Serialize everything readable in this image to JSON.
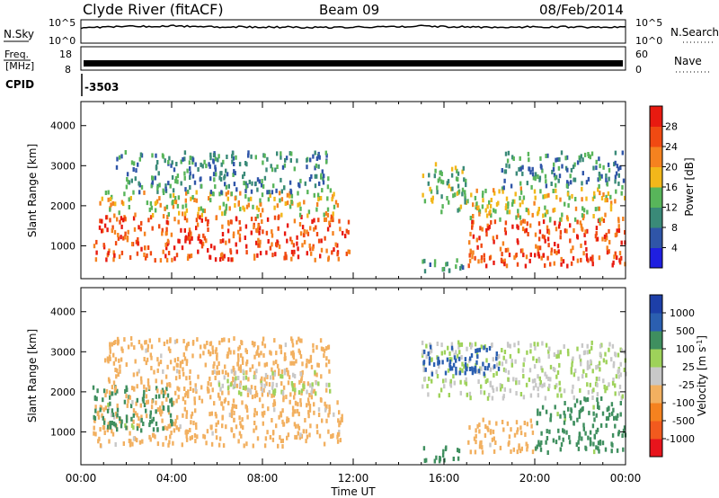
{
  "header": {
    "station": "Clyde River (fitACF)",
    "beam": "Beam 09",
    "date": "08/Feb/2014"
  },
  "noise_panel": {
    "left_label": "N.Sky",
    "right_label": "N.Search",
    "left_ticks": [
      "10^5",
      "10^0"
    ],
    "right_ticks": [
      "10^5",
      "10^0"
    ]
  },
  "freq_panel": {
    "left_label_line1": "Freq.",
    "left_label_line2": "[MHz]",
    "right_label": "Nave",
    "left_ticks": [
      "18",
      "8"
    ],
    "right_ticks": [
      "60",
      "0"
    ]
  },
  "cpid_panel": {
    "label": "CPID",
    "value": "-3503"
  },
  "axes": {
    "ylabel": "Slant Range [km]",
    "xlabel": "Time UT",
    "x_ticks": [
      "00:00",
      "04:00",
      "08:00",
      "12:00",
      "16:00",
      "20:00",
      "00:00"
    ],
    "y_ticks": [
      "1000",
      "2000",
      "3000",
      "4000"
    ]
  },
  "colors": {
    "power_scale": [
      "#1f1fe0",
      "#2f55a8",
      "#3a8a78",
      "#58b55a",
      "#f2b71a",
      "#f5821f",
      "#f04a12",
      "#e81a10"
    ],
    "velocity_scale": [
      "#e8141c",
      "#f25a1e",
      "#f5821f",
      "#f2b060",
      "#c8c8c8",
      "#9ed25a",
      "#3f8f5f",
      "#2b5fb0",
      "#1d3fa8"
    ]
  },
  "chart_data": [
    {
      "type": "line",
      "title": "Clyde River (fitACF)",
      "xlabel": "",
      "ylabel": "N.Sky",
      "x_range_hours": [
        0,
        24
      ],
      "ylim": [
        1,
        100000
      ],
      "yscale": "log",
      "series": [
        {
          "name": "N.Sky",
          "x": [
            0,
            1,
            2,
            3,
            4,
            5,
            6,
            8,
            10,
            12,
            14,
            15,
            16,
            18,
            20,
            22,
            24
          ],
          "values": [
            2000,
            3000,
            3500,
            4000,
            5000,
            3500,
            3000,
            2800,
            2500,
            2600,
            3200,
            5000,
            3500,
            2500,
            3000,
            2800,
            2600
          ]
        }
      ]
    },
    {
      "type": "line",
      "title": "",
      "xlabel": "",
      "ylabel": "Freq. [MHz]",
      "x_range_hours": [
        0,
        24
      ],
      "ylim": [
        8,
        18
      ],
      "series": [
        {
          "name": "Freq.",
          "x": [
            0,
            24
          ],
          "values": [
            12,
            12
          ]
        }
      ]
    },
    {
      "type": "heatmap",
      "title": "",
      "xlabel": "",
      "ylabel": "Slant Range [km]",
      "colorbar_label": "Power [dB]",
      "colorbar_ticks": [
        4,
        8,
        12,
        16,
        20,
        24,
        28
      ],
      "value_range": [
        0,
        32
      ],
      "x_range_hours": [
        0,
        24
      ],
      "ylim": [
        180,
        4600
      ],
      "regions": [
        {
          "t0": 0.5,
          "t1": 11.8,
          "r0": 600,
          "r1": 1700,
          "value": 28
        },
        {
          "t0": 0.8,
          "t1": 11.5,
          "r0": 1700,
          "r1": 2300,
          "value": 20
        },
        {
          "t0": 1.5,
          "t1": 11.0,
          "r0": 2300,
          "r1": 3300,
          "value": 12
        },
        {
          "t0": 17.0,
          "t1": 24.0,
          "r0": 450,
          "r1": 1600,
          "value": 28
        },
        {
          "t0": 17.0,
          "t1": 24.0,
          "r0": 1600,
          "r1": 2400,
          "value": 20
        },
        {
          "t0": 18.5,
          "t1": 24.0,
          "r0": 2400,
          "r1": 3300,
          "value": 12
        },
        {
          "t0": 15.0,
          "t1": 17.0,
          "r0": 1800,
          "r1": 3000,
          "value": 16
        },
        {
          "t0": 15.0,
          "t1": 16.8,
          "r0": 200,
          "r1": 600,
          "value": 12
        }
      ]
    },
    {
      "type": "heatmap",
      "title": "",
      "xlabel": "Time UT",
      "ylabel": "Slant Range [km]",
      "colorbar_label": "Velocity [m s^-1]",
      "colorbar_ticks": [
        1000,
        500,
        100,
        25,
        -25,
        -100,
        -500,
        -1000
      ],
      "x_range_hours": [
        0,
        24
      ],
      "ylim": [
        180,
        4600
      ],
      "regions": [
        {
          "t0": 0.5,
          "t1": 11.5,
          "r0": 600,
          "r1": 1700,
          "value": -100
        },
        {
          "t0": 0.5,
          "t1": 4.0,
          "r0": 1000,
          "r1": 2100,
          "value": 100
        },
        {
          "t0": 1.0,
          "t1": 11.0,
          "r0": 1700,
          "r1": 3300,
          "value": -100
        },
        {
          "t0": 6.0,
          "t1": 11.0,
          "r0": 1900,
          "r1": 2500,
          "value": 0
        },
        {
          "t0": 15.0,
          "t1": 24.0,
          "r0": 1800,
          "r1": 3200,
          "value": 0
        },
        {
          "t0": 15.0,
          "t1": 18.5,
          "r0": 2400,
          "r1": 3100,
          "value": 500
        },
        {
          "t0": 17.0,
          "t1": 20.0,
          "r0": 450,
          "r1": 1300,
          "value": -100
        },
        {
          "t0": 20.0,
          "t1": 24.0,
          "r0": 450,
          "r1": 1800,
          "value": 100
        },
        {
          "t0": 15.0,
          "t1": 16.8,
          "r0": 200,
          "r1": 600,
          "value": 100
        }
      ]
    }
  ]
}
